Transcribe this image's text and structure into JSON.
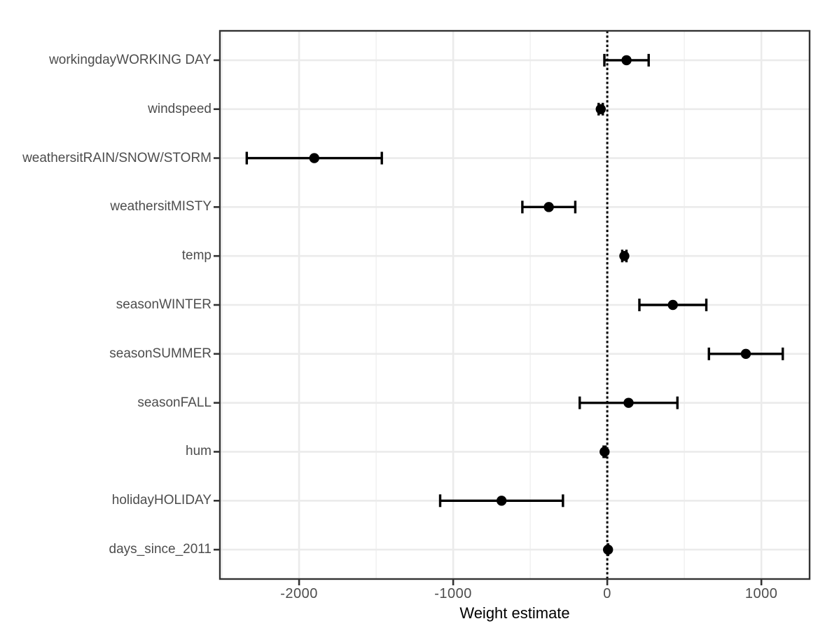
{
  "chart_data": {
    "type": "scatter",
    "subtype": "dot-and-whisker coefficient plot with 95% confidence interval error bars",
    "title": "",
    "xlabel": "Weight estimate",
    "ylabel": "",
    "xlim": [
      -2514,
      1313
    ],
    "x_major_ticks": [
      -2000,
      -1000,
      0,
      1000
    ],
    "x_major_tick_labels": [
      "-2000",
      "-1000",
      "0",
      "1000"
    ],
    "x_minor_ticks": [
      -2500,
      -1500,
      -500,
      500
    ],
    "reference_line_x": 0,
    "reference_line_style": "dotted",
    "grid": "on",
    "legend": "none",
    "categories_top_to_bottom": [
      "workingdayWORKING DAY",
      "windspeed",
      "weathersitRAIN/SNOW/STORM",
      "weathersitMISTY",
      "temp",
      "seasonWINTER",
      "seasonSUMMER",
      "seasonFALL",
      "hum",
      "holidayHOLIDAY",
      "days_since_2011"
    ],
    "rows": [
      {
        "label": "workingdayWORKING DAY",
        "estimate": 124.9,
        "ci_lower": -18.8,
        "ci_upper": 268.6
      },
      {
        "label": "windspeed",
        "estimate": -42.5,
        "ci_lower": -56.0,
        "ci_upper": -29.0
      },
      {
        "label": "weathersitRAIN/SNOW/STORM",
        "estimate": -1901.5,
        "ci_lower": -2339.8,
        "ci_upper": -1463.2
      },
      {
        "label": "weathersitMISTY",
        "estimate": -379.4,
        "ci_lower": -551.1,
        "ci_upper": -207.7
      },
      {
        "label": "temp",
        "estimate": 110.7,
        "ci_lower": 97.0,
        "ci_upper": 124.4
      },
      {
        "label": "seasonWINTER",
        "estimate": 425.6,
        "ci_lower": 208.4,
        "ci_upper": 642.8
      },
      {
        "label": "seasonSUMMER",
        "estimate": 899.3,
        "ci_lower": 659.6,
        "ci_upper": 1139.0
      },
      {
        "label": "seasonFALL",
        "estimate": 138.2,
        "ci_lower": -178.8,
        "ci_upper": 455.2
      },
      {
        "label": "hum",
        "estimate": -17.4,
        "ci_lower": -23.7,
        "ci_upper": -11.1
      },
      {
        "label": "holidayHOLIDAY",
        "estimate": -686.1,
        "ci_lower": -1084.6,
        "ci_upper": -287.6
      },
      {
        "label": "days_since_2011",
        "estimate": 4.9,
        "ci_lower": 4.5,
        "ci_upper": 5.3
      }
    ],
    "colors": {
      "point": "#000000",
      "errorbar": "#000000",
      "reference_line": "#000000",
      "grid_major": "#ebebeb",
      "grid_minor": "#efefef",
      "panel_border": "#333333",
      "tick_mark": "#333333",
      "axis_text": "#4d4d4d",
      "axis_title": "#000000",
      "background": "#ffffff",
      "panel_background": "#ffffff"
    }
  }
}
